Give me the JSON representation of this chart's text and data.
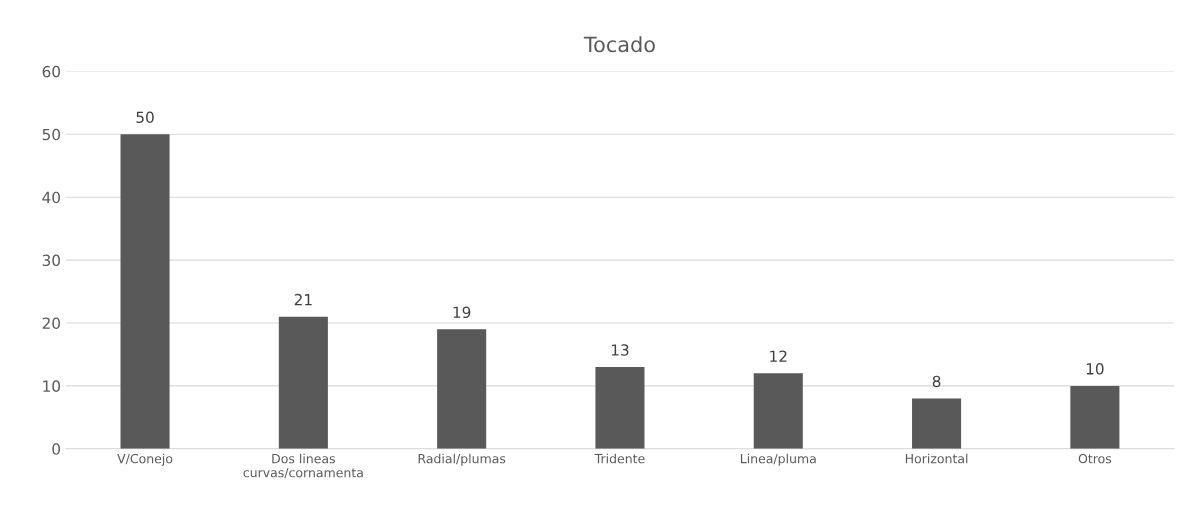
{
  "chart_data": {
    "type": "bar",
    "title": "Tocado",
    "categories": [
      "V/Conejo",
      "Dos lineas\ncurvas/cornamenta",
      "Radial/plumas",
      "Tridente",
      "Linea/pluma",
      "Horizontal",
      "Otros"
    ],
    "values": [
      50,
      21,
      19,
      13,
      12,
      8,
      10
    ],
    "color": "#595959",
    "ylim": [
      0,
      60
    ],
    "yticks": [
      0,
      10,
      20,
      30,
      40,
      50,
      60
    ],
    "grid": "y",
    "data_labels": true
  }
}
